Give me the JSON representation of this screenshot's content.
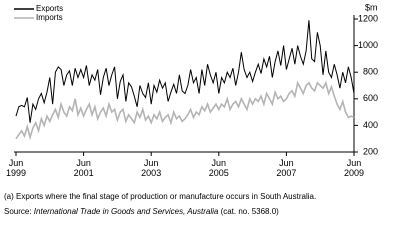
{
  "chart_data": {
    "type": "line",
    "y_label": "$m",
    "legend": "top-left",
    "ylim": [
      200,
      1200
    ],
    "yticks": [
      200,
      400,
      600,
      800,
      1000,
      1200
    ],
    "categories": [
      "Jun\n1999",
      null,
      null,
      null,
      null,
      null,
      null,
      null,
      null,
      null,
      null,
      null,
      null,
      null,
      null,
      null,
      null,
      null,
      null,
      null,
      null,
      null,
      null,
      null,
      "Jun\n2001",
      null,
      null,
      null,
      null,
      null,
      null,
      null,
      null,
      null,
      null,
      null,
      null,
      null,
      null,
      null,
      null,
      null,
      null,
      null,
      null,
      null,
      null,
      null,
      "Jun\n2003",
      null,
      null,
      null,
      null,
      null,
      null,
      null,
      null,
      null,
      null,
      null,
      null,
      null,
      null,
      null,
      null,
      null,
      null,
      null,
      null,
      null,
      null,
      null,
      "Jun\n2005",
      null,
      null,
      null,
      null,
      null,
      null,
      null,
      null,
      null,
      null,
      null,
      null,
      null,
      null,
      null,
      null,
      null,
      null,
      null,
      null,
      null,
      null,
      null,
      "Jun\n2007",
      null,
      null,
      null,
      null,
      null,
      null,
      null,
      null,
      null,
      null,
      null,
      null,
      null,
      null,
      null,
      null,
      null,
      null,
      null,
      null,
      null,
      null,
      null,
      "Jun\n2009"
    ],
    "series": [
      {
        "name": "Exports",
        "color": "#000000",
        "values": [
          470,
          540,
          550,
          540,
          610,
          420,
          560,
          520,
          600,
          640,
          570,
          650,
          760,
          560,
          800,
          840,
          820,
          700,
          780,
          810,
          700,
          830,
          760,
          820,
          760,
          850,
          700,
          780,
          740,
          820,
          630,
          760,
          830,
          700,
          780,
          840,
          600,
          730,
          780,
          580,
          720,
          690,
          620,
          540,
          700,
          640,
          610,
          720,
          560,
          700,
          650,
          740,
          680,
          720,
          580,
          650,
          710,
          640,
          780,
          660,
          640,
          700,
          820,
          720,
          760,
          640,
          820,
          700,
          860,
          780,
          720,
          800,
          640,
          760,
          720,
          800,
          760,
          830,
          700,
          800,
          950,
          820,
          760,
          800,
          730,
          800,
          860,
          790,
          900,
          840,
          920,
          760,
          880,
          960,
          850,
          1000,
          820,
          900,
          980,
          860,
          1000,
          920,
          860,
          960,
          1190,
          900,
          880,
          1100,
          1000,
          780,
          960,
          800,
          760,
          860,
          780,
          680,
          800,
          720,
          840,
          760,
          640
        ]
      },
      {
        "name": "Imports",
        "color": "#b4b4b4",
        "values": [
          300,
          330,
          360,
          320,
          390,
          310,
          380,
          420,
          360,
          450,
          400,
          470,
          430,
          480,
          520,
          460,
          560,
          500,
          470,
          540,
          510,
          600,
          480,
          530,
          470,
          520,
          560,
          480,
          540,
          450,
          500,
          530,
          470,
          560,
          500,
          520,
          440,
          500,
          520,
          430,
          480,
          450,
          420,
          500,
          460,
          520,
          440,
          470,
          420,
          480,
          450,
          500,
          430,
          460,
          480,
          420,
          500,
          450,
          470,
          430,
          450,
          480,
          520,
          460,
          500,
          480,
          540,
          510,
          560,
          500,
          530,
          560,
          520,
          560,
          540,
          600,
          520,
          560,
          580,
          540,
          600,
          560,
          520,
          600,
          560,
          600,
          580,
          620,
          560,
          640,
          600,
          560,
          650,
          600,
          620,
          580,
          600,
          640,
          660,
          620,
          720,
          680,
          640,
          700,
          720,
          680,
          660,
          720,
          700,
          680,
          720,
          640,
          690,
          620,
          560,
          520,
          580,
          500,
          460,
          470,
          460
        ]
      }
    ],
    "footnotes": [
      "(a) Exports where the final stage of production or manufacture occurs in South Australia.",
      [
        "Source: ",
        "International Trade in Goods and Services, Australia",
        " (cat. no. 5368.0)"
      ]
    ]
  }
}
